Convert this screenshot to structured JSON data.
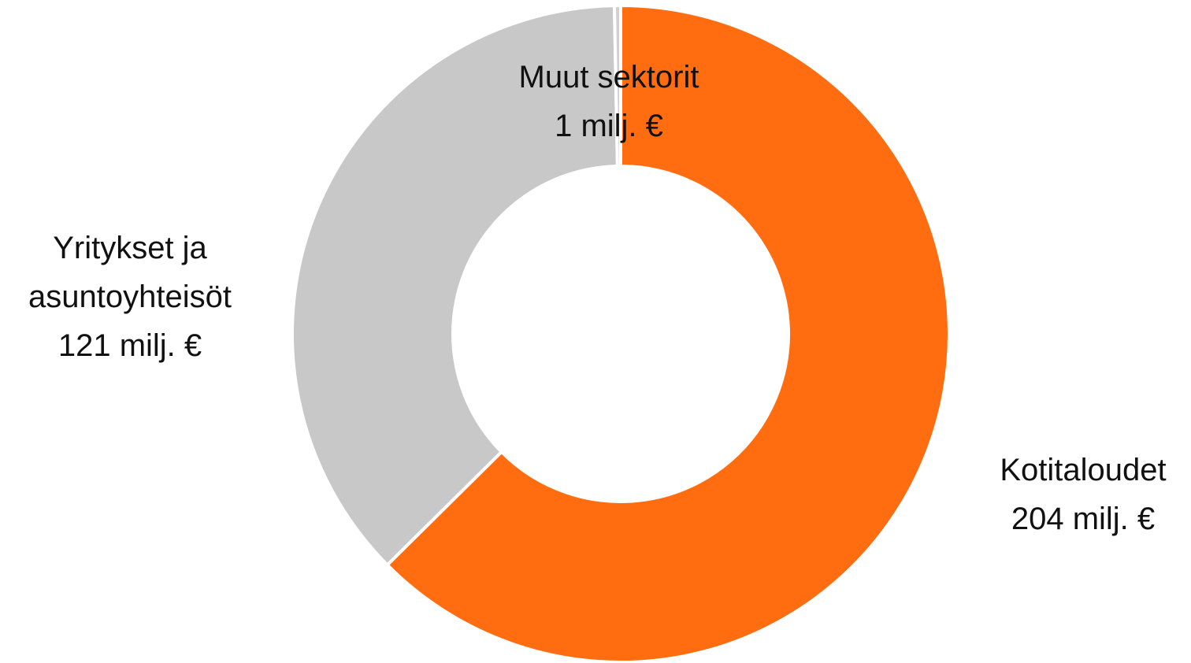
{
  "chart_data": {
    "type": "donut",
    "categories": [
      "Kotitaloudet",
      "Yritykset ja asuntoyhteisöt",
      "Muut sektorit"
    ],
    "values": [
      204,
      121,
      1
    ],
    "value_labels": [
      "204 milj. €",
      "121 milj. €",
      "1 milj. €"
    ],
    "colors": [
      "#ff6d10",
      "#c8c8c8",
      "#d0d0d0"
    ]
  }
}
